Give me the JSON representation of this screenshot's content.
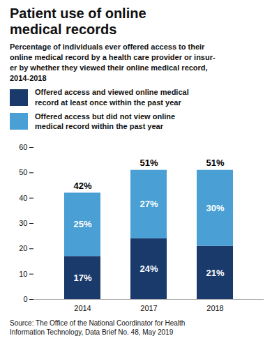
{
  "chart_data": {
    "type": "bar",
    "title": "Patient use of online\nmedical records",
    "subtitle": "Percentage of individuals ever offered access to their\nonline medical record by a health care provider or insur-\ner by whether they viewed their online medical record,\n2014-2018",
    "source": "Source: The Office of the National Coordinator for Health\nInformation Technology, Data Brief No. 48, May 2019",
    "categories": [
      "2014",
      "2017",
      "2018"
    ],
    "series": [
      {
        "name": "Offered access and viewed online medical\nrecord at least once within the past year",
        "color": "#1a3a6b",
        "values": [
          17,
          24,
          21
        ],
        "value_labels": [
          "17%",
          "24%",
          "21%"
        ]
      },
      {
        "name": "Offered access but did not view online\nmedical record within the past year",
        "color": "#4a9fd4",
        "values": [
          25,
          27,
          30
        ],
        "value_labels": [
          "25%",
          "27%",
          "30%"
        ]
      }
    ],
    "totals": [
      42,
      51,
      51
    ],
    "total_labels": [
      "42%",
      "51%",
      "51%"
    ],
    "stacked": true,
    "data_labels": true,
    "legend": "top",
    "grid": false,
    "ylim": [
      0,
      60
    ],
    "yticks": [
      0,
      10,
      20,
      30,
      40,
      50,
      60
    ]
  }
}
